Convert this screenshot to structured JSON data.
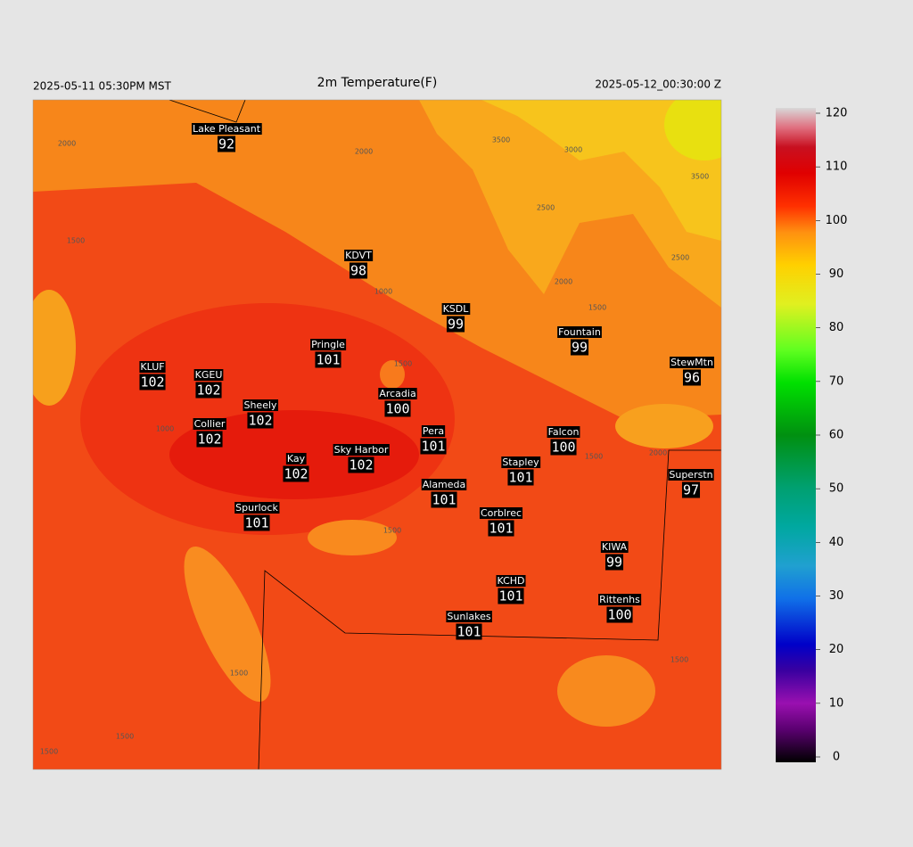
{
  "header": {
    "left": "2025-05-11 05:30PM MST",
    "title": "2m Temperature(F)",
    "right": "2025-05-12_00:30:00 Z"
  },
  "stations": [
    {
      "name": "Lake Pleasant",
      "value": 92
    },
    {
      "name": "KDVT",
      "value": 98
    },
    {
      "name": "KSDL",
      "value": 99
    },
    {
      "name": "Fountain",
      "value": 99
    },
    {
      "name": "StewMtn",
      "value": 96
    },
    {
      "name": "Pringle",
      "value": 101
    },
    {
      "name": "KLUF",
      "value": 102
    },
    {
      "name": "KGEU",
      "value": 102
    },
    {
      "name": "Arcadia",
      "value": 100
    },
    {
      "name": "Sheely",
      "value": 102
    },
    {
      "name": "Collier",
      "value": 102
    },
    {
      "name": "Pera",
      "value": 101
    },
    {
      "name": "Falcon",
      "value": 100
    },
    {
      "name": "Sky Harbor",
      "value": 102
    },
    {
      "name": "Kay",
      "value": 102
    },
    {
      "name": "Stapley",
      "value": 101
    },
    {
      "name": "Superstn",
      "value": 97
    },
    {
      "name": "Alameda",
      "value": 101
    },
    {
      "name": "Spurlock",
      "value": 101
    },
    {
      "name": "Corblrec",
      "value": 101
    },
    {
      "name": "KIWA",
      "value": 99
    },
    {
      "name": "KCHD",
      "value": 101
    },
    {
      "name": "Rittenhs",
      "value": 100
    },
    {
      "name": "Sunlakes",
      "value": 101
    }
  ],
  "contour_labels": [
    "2000",
    "2000",
    "3500",
    "3000",
    "3500",
    "2500",
    "2500",
    "2000",
    "1500",
    "1000",
    "1500",
    "1500",
    "1000",
    "2000",
    "1500",
    "1500",
    "1500",
    "1500",
    "1500",
    "1500"
  ],
  "colorbar": {
    "lim": [
      0,
      120
    ],
    "ticks": [
      0,
      10,
      20,
      30,
      40,
      50,
      60,
      70,
      80,
      90,
      100,
      110,
      120
    ]
  }
}
